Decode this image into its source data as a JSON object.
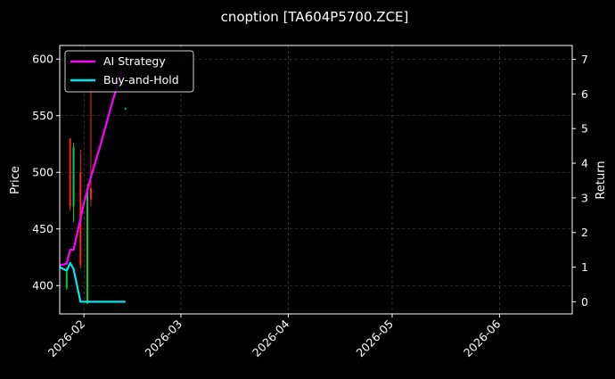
{
  "chart_data": {
    "type": "line",
    "title": "cnoption [TA604P5700.ZCE]",
    "ylabel": "Price",
    "y2label": "Return",
    "x_ticks": [
      "2026-02",
      "2026-03",
      "2026-04",
      "2026-05",
      "2026-06"
    ],
    "x_tick_dates": [
      "2026-02-01",
      "2026-03-01",
      "2026-04-01",
      "2026-05-01",
      "2026-06-01"
    ],
    "xlim": [
      "2026-01-25",
      "2026-06-22"
    ],
    "ylim": [
      375,
      612
    ],
    "y_ticks": [
      400,
      450,
      500,
      550,
      600
    ],
    "y2lim": [
      -0.35,
      7.4
    ],
    "y2_ticks": [
      0,
      1,
      2,
      3,
      4,
      5,
      6,
      7
    ],
    "grid": true,
    "legend_position": "top-left",
    "colors": {
      "background": "#000000",
      "axes": "#ffffff",
      "grid": "#555555",
      "up": "#00cc44",
      "down": "#ff2222",
      "ai_strategy": "#ff00ff",
      "buy_and_hold": "#00e5ee"
    },
    "candles": [
      {
        "date": "2026-01-27",
        "open": 412,
        "high": 416,
        "low": 396,
        "close": 398,
        "color": "up"
      },
      {
        "date": "2026-01-28",
        "open": 530,
        "high": 530,
        "low": 466,
        "close": 470,
        "color": "down"
      },
      {
        "date": "2026-01-29",
        "open": 470,
        "high": 526,
        "low": 456,
        "close": 522,
        "color": "up"
      },
      {
        "date": "2026-01-31",
        "open": 500,
        "high": 520,
        "low": 415,
        "close": 418,
        "color": "down"
      },
      {
        "date": "2026-02-02",
        "open": 384,
        "high": 490,
        "low": 384,
        "close": 486,
        "color": "up"
      },
      {
        "date": "2026-02-03",
        "open": 486,
        "high": 576,
        "low": 470,
        "close": 476,
        "color": "down"
      },
      {
        "date": "2026-02-13",
        "open": 557,
        "high": 557,
        "low": 555,
        "close": 556,
        "color": "up"
      }
    ],
    "series": [
      {
        "name": "AI Strategy",
        "color": "#ff00ff",
        "axis": "right",
        "x": [
          "2026-01-25",
          "2026-01-27",
          "2026-01-28",
          "2026-01-29",
          "2026-02-01",
          "2026-02-03",
          "2026-02-06",
          "2026-02-09",
          "2026-02-12"
        ],
        "values": [
          1.05,
          1.1,
          1.5,
          1.5,
          2.85,
          3.6,
          4.6,
          5.7,
          6.7
        ]
      },
      {
        "name": "Buy-and-Hold",
        "color": "#00e5ee",
        "axis": "right",
        "x": [
          "2026-01-25",
          "2026-01-27",
          "2026-01-28",
          "2026-01-29",
          "2026-01-31",
          "2026-02-01",
          "2026-02-13"
        ],
        "values": [
          1.0,
          0.9,
          1.12,
          0.95,
          0.0,
          0.0,
          0.0
        ]
      }
    ]
  }
}
